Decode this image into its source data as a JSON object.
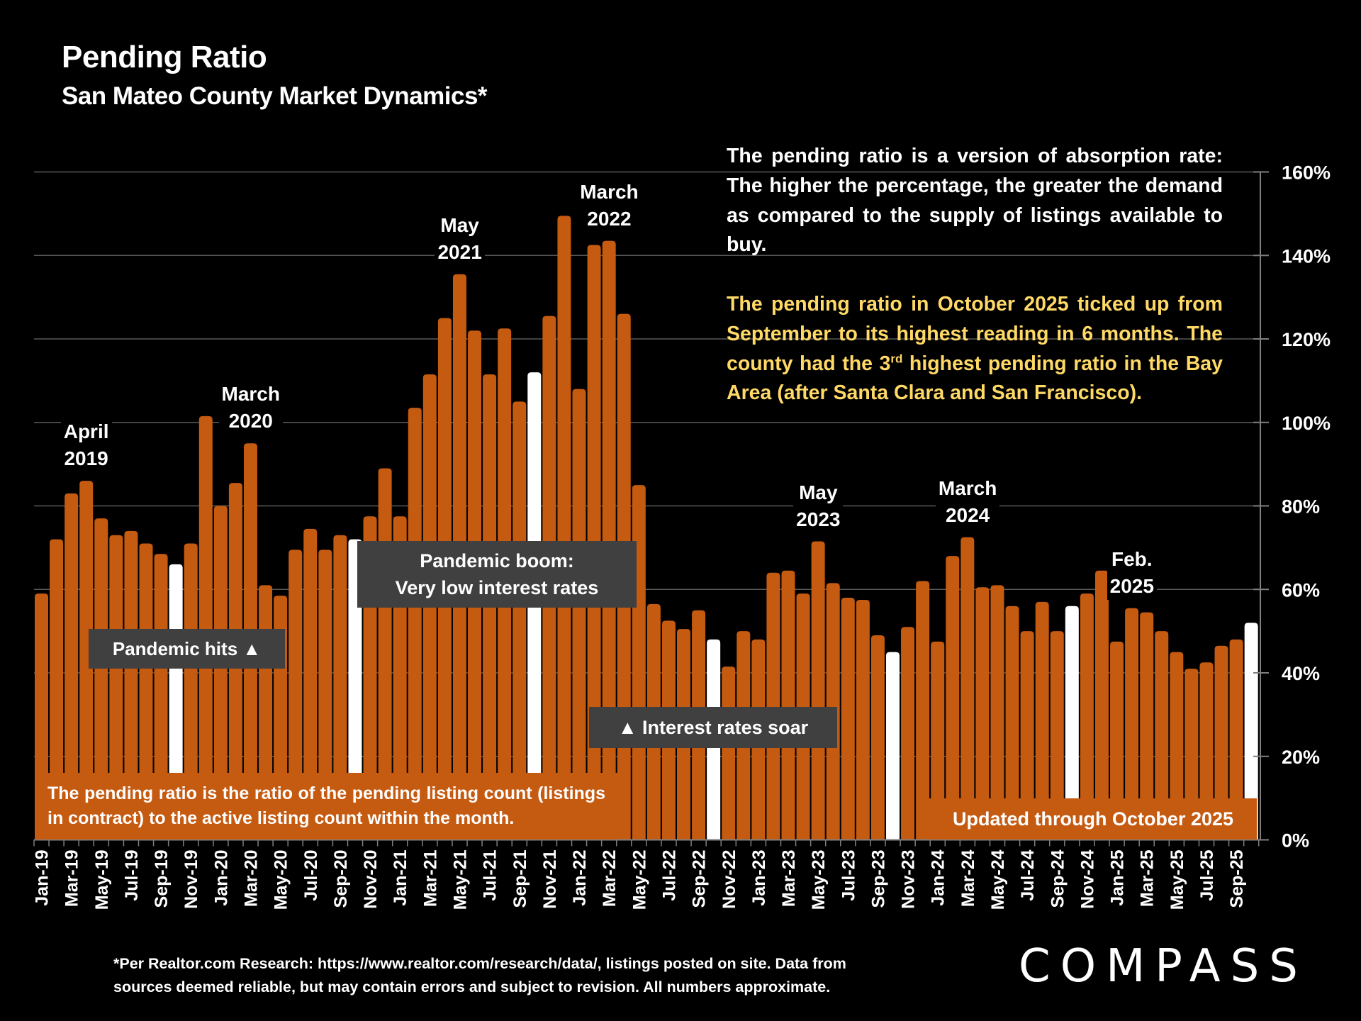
{
  "header": {
    "title": "Pending Ratio",
    "subtitle": "San Mateo County Market Dynamics*"
  },
  "description": {
    "paragraph1": "The pending ratio is a version of absorption rate: The higher the percentage, the greater the demand as compared to the supply of listings available to buy.",
    "paragraph2_before_sup": "The pending ratio in October 2025 ticked up from September to its highest reading in 6 months. The county had the 3",
    "paragraph2_sup": "rd",
    "paragraph2_after_sup": " highest pending ratio in the Bay Area (after Santa Clara and San Francisco)."
  },
  "annotations": {
    "pandemic_hits": "Pandemic hits ▲",
    "pandemic_boom_line1": "Pandemic boom:",
    "pandemic_boom_line2": "Very low interest rates",
    "interest_rates": "▲ Interest rates soar",
    "definition": "The pending ratio is the ratio of the pending listing count (listings in contract) to the active listing count within the month.",
    "updated": "Updated through October 2025"
  },
  "peak_labels": [
    {
      "line1": "April",
      "line2": "2019",
      "month_index": 3
    },
    {
      "line1": "March",
      "line2": "2020",
      "month_index": 14
    },
    {
      "line1": "May",
      "line2": "2021",
      "month_index": 28
    },
    {
      "line1": "March",
      "line2": "2022",
      "month_index": 38
    },
    {
      "line1": "May",
      "line2": "2023",
      "month_index": 52
    },
    {
      "line1": "March",
      "line2": "2024",
      "month_index": 62
    },
    {
      "line1": "Feb.",
      "line2": "2025",
      "month_index": 73
    }
  ],
  "footer": {
    "line1": "*Per Realtor.com Research:  https://www.realtor.com/research/data/, listings posted on site. Data from",
    "line2": "sources deemed reliable, but may contain errors and subject to revision. All numbers approximate."
  },
  "logo": {
    "text": "COMPASS"
  },
  "colors": {
    "bar": "#C55A11",
    "highlight_bar": "#FFFFFF",
    "annotation_box": "#404040",
    "highlight_text": "#FFD966",
    "gridline": "#595959",
    "background": "#000000"
  },
  "chart_data": {
    "type": "bar",
    "title": "Pending Ratio",
    "subtitle": "San Mateo County Market Dynamics*",
    "xlabel": "",
    "ylabel": "",
    "y_axis_side": "right",
    "ylim": [
      0,
      160
    ],
    "y_ticks": [
      0,
      20,
      40,
      60,
      80,
      100,
      120,
      140,
      160
    ],
    "y_tick_labels": [
      "0%",
      "20%",
      "40%",
      "60%",
      "80%",
      "100%",
      "120%",
      "140%",
      "160%"
    ],
    "grid": true,
    "value_unit": "percent",
    "categories": [
      "Jan-19",
      "Feb-19",
      "Mar-19",
      "Apr-19",
      "May-19",
      "Jun-19",
      "Jul-19",
      "Aug-19",
      "Sep-19",
      "Oct-19",
      "Nov-19",
      "Dec-19",
      "Jan-20",
      "Feb-20",
      "Mar-20",
      "Apr-20",
      "May-20",
      "Jun-20",
      "Jul-20",
      "Aug-20",
      "Sep-20",
      "Oct-20",
      "Nov-20",
      "Dec-20",
      "Jan-21",
      "Feb-21",
      "Mar-21",
      "Apr-21",
      "May-21",
      "Jun-21",
      "Jul-21",
      "Aug-21",
      "Sep-21",
      "Oct-21",
      "Nov-21",
      "Dec-21",
      "Jan-22",
      "Feb-22",
      "Mar-22",
      "Apr-22",
      "May-22",
      "Jun-22",
      "Jul-22",
      "Aug-22",
      "Sep-22",
      "Oct-22",
      "Nov-22",
      "Dec-22",
      "Jan-23",
      "Feb-23",
      "Mar-23",
      "Apr-23",
      "May-23",
      "Jun-23",
      "Jul-23",
      "Aug-23",
      "Sep-23",
      "Oct-23",
      "Nov-23",
      "Dec-23",
      "Jan-24",
      "Feb-24",
      "Mar-24",
      "Apr-24",
      "May-24",
      "Jun-24",
      "Jul-24",
      "Aug-24",
      "Sep-24",
      "Oct-24",
      "Nov-24",
      "Dec-24",
      "Jan-25",
      "Feb-25",
      "Mar-25",
      "Apr-25",
      "May-25",
      "Jun-25",
      "Jul-25",
      "Aug-25",
      "Sep-25",
      "Oct-25"
    ],
    "x_tick_labels_shown": [
      "Jan-19",
      "Mar-19",
      "May-19",
      "Jul-19",
      "Sep-19",
      "Nov-19",
      "Jan-20",
      "Mar-20",
      "May-20",
      "Jul-20",
      "Sep-20",
      "Nov-20",
      "Jan-21",
      "Mar-21",
      "May-21",
      "Jul-21",
      "Sep-21",
      "Nov-21",
      "Jan-22",
      "Mar-22",
      "May-22",
      "Jul-22",
      "Sep-22",
      "Nov-22",
      "Jan-23",
      "Mar-23",
      "May-23",
      "Jul-23",
      "Sep-23",
      "Nov-23",
      "Jan-24",
      "Mar-24",
      "May-24",
      "Jul-24",
      "Sep-24",
      "Nov-24",
      "Jan-25",
      "Mar-25",
      "May-25",
      "Jul-25",
      "Sep-25"
    ],
    "values": [
      59,
      72,
      83,
      86,
      77,
      73,
      74,
      71,
      68.5,
      66,
      71,
      101.5,
      80,
      85.5,
      95,
      61,
      58.5,
      69.5,
      74.5,
      69.5,
      73,
      72,
      77.5,
      89,
      77.5,
      103.5,
      111.5,
      125,
      135.5,
      122,
      111.5,
      122.5,
      105,
      112,
      125.5,
      149.5,
      108,
      142.5,
      143.5,
      126,
      85,
      56.5,
      52.5,
      50.5,
      55,
      48,
      41.5,
      50,
      48,
      64,
      64.5,
      59,
      71.5,
      61.5,
      58,
      57.5,
      49,
      45,
      51,
      62,
      47.5,
      68,
      72.5,
      60.5,
      61,
      56,
      50,
      57,
      50,
      56,
      59,
      64.5,
      47.5,
      55.5,
      54.5,
      50,
      45,
      41,
      42.5,
      46.5,
      48,
      52
    ],
    "highlighted_categories": [
      "Oct-19",
      "Oct-20",
      "Oct-21",
      "Oct-22",
      "Oct-23",
      "Oct-24",
      "Oct-25"
    ]
  }
}
